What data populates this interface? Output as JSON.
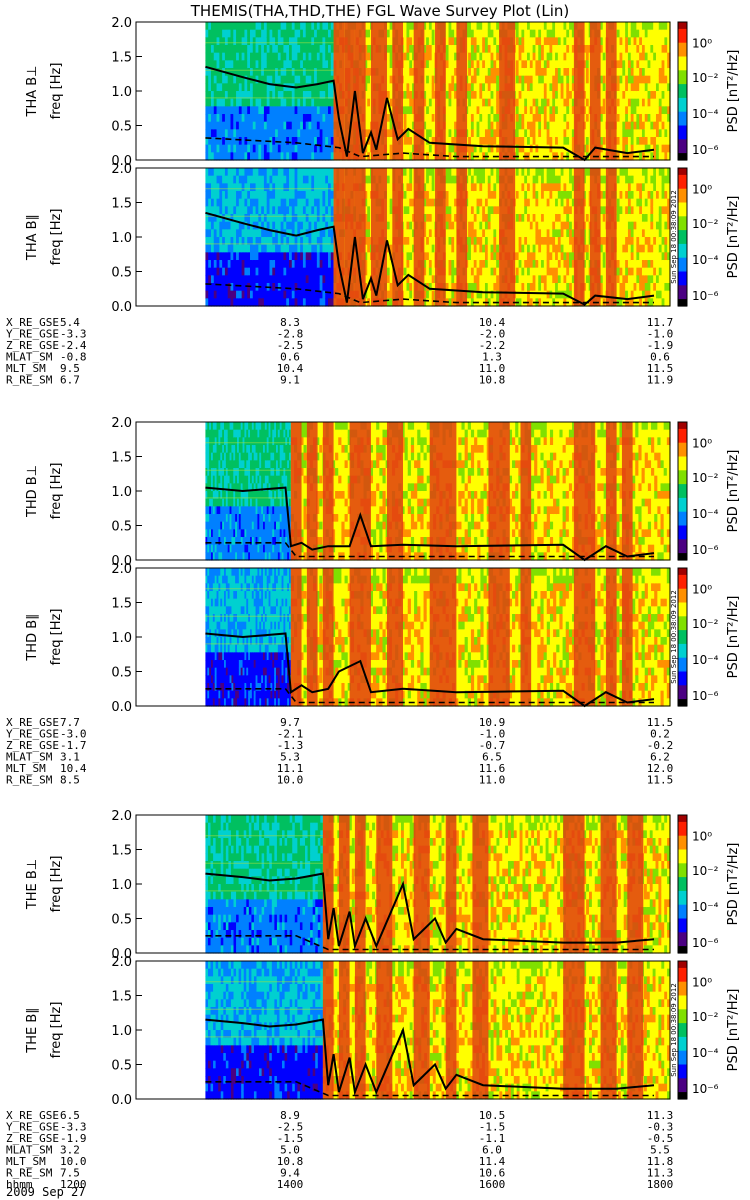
{
  "title": "THEMIS(THA,THD,THE) FGL Wave Survey Plot (Lin)",
  "stamp": "Sun Sep 18 00:38:09 2012",
  "colorbar": {
    "label": "PSD [nT²/Hz]",
    "ticks": [
      "10⁰",
      "10⁻²",
      "10⁻⁴",
      "10⁻⁶"
    ],
    "colors": [
      "#000000",
      "#4b0082",
      "#0000ff",
      "#0080ff",
      "#00d0d0",
      "#00c060",
      "#80e000",
      "#ffff00",
      "#ff9000",
      "#ff2000",
      "#a00000"
    ]
  },
  "freq_axis": {
    "label": "freq [Hz]",
    "ticks": [
      "0.0",
      "0.5",
      "1.0",
      "1.5",
      "2.0"
    ],
    "range": [
      0,
      2.0
    ]
  },
  "chart_data": [
    {
      "type": "heatmap",
      "probe": "THA",
      "panels": [
        "THA B⊥",
        "THA B∥"
      ],
      "data_start_frac": 0.13,
      "active_frac": 0.37,
      "red_bursts": [
        [
          0.37,
          0.39
        ],
        [
          0.39,
          0.41
        ],
        [
          0.41,
          0.43
        ],
        [
          0.44,
          0.47
        ],
        [
          0.48,
          0.5
        ],
        [
          0.52,
          0.54
        ],
        [
          0.56,
          0.58
        ],
        [
          0.6,
          0.62
        ],
        [
          0.68,
          0.71
        ],
        [
          0.82,
          0.84
        ],
        [
          0.85,
          0.87
        ],
        [
          0.88,
          0.9
        ]
      ],
      "line_solid_perp": [
        [
          0.13,
          1.35
        ],
        [
          0.2,
          1.2
        ],
        [
          0.25,
          1.1
        ],
        [
          0.3,
          1.05
        ],
        [
          0.34,
          1.1
        ],
        [
          0.37,
          1.15
        ],
        [
          0.38,
          0.6
        ],
        [
          0.395,
          0.05
        ],
        [
          0.41,
          1.0
        ],
        [
          0.425,
          0.1
        ],
        [
          0.44,
          0.4
        ],
        [
          0.45,
          0.15
        ],
        [
          0.47,
          0.9
        ],
        [
          0.49,
          0.3
        ],
        [
          0.51,
          0.45
        ],
        [
          0.55,
          0.25
        ],
        [
          0.65,
          0.2
        ],
        [
          0.8,
          0.18
        ],
        [
          0.84,
          0.0
        ],
        [
          0.86,
          0.18
        ],
        [
          0.92,
          0.1
        ],
        [
          0.97,
          0.15
        ]
      ],
      "line_solid_par": [
        [
          0.13,
          1.35
        ],
        [
          0.2,
          1.2
        ],
        [
          0.25,
          1.1
        ],
        [
          0.3,
          1.02
        ],
        [
          0.34,
          1.1
        ],
        [
          0.37,
          1.15
        ],
        [
          0.38,
          0.6
        ],
        [
          0.395,
          0.05
        ],
        [
          0.41,
          1.0
        ],
        [
          0.425,
          0.1
        ],
        [
          0.44,
          0.4
        ],
        [
          0.45,
          0.15
        ],
        [
          0.47,
          0.95
        ],
        [
          0.49,
          0.3
        ],
        [
          0.51,
          0.45
        ],
        [
          0.55,
          0.25
        ],
        [
          0.65,
          0.2
        ],
        [
          0.8,
          0.18
        ],
        [
          0.84,
          0.02
        ],
        [
          0.86,
          0.15
        ],
        [
          0.92,
          0.1
        ],
        [
          0.97,
          0.15
        ]
      ],
      "line_dashed": [
        [
          0.13,
          0.32
        ],
        [
          0.3,
          0.25
        ],
        [
          0.38,
          0.18
        ],
        [
          0.42,
          0.05
        ],
        [
          0.5,
          0.1
        ],
        [
          0.6,
          0.05
        ],
        [
          0.97,
          0.05
        ]
      ],
      "ephemeris": {
        "labels": [
          "X_RE_GSE",
          "Y_RE_GSE",
          "Z_RE_GSE",
          "MLAT_SM",
          "MLT_SM",
          "R_RE_SM"
        ],
        "columns": [
          [
            "5.4",
            "-3.3",
            "-2.4",
            "-0.8",
            "9.5",
            "6.7"
          ],
          [
            "8.3",
            "-2.8",
            "-2.5",
            "0.6",
            "10.4",
            "9.1"
          ],
          [
            "10.4",
            "-2.0",
            "-2.2",
            "1.3",
            "11.0",
            "10.8"
          ],
          [
            "11.7",
            "-1.0",
            "-1.9",
            "0.6",
            "11.5",
            "11.9"
          ]
        ]
      }
    },
    {
      "type": "heatmap",
      "probe": "THD",
      "panels": [
        "THD B⊥",
        "THD B∥"
      ],
      "data_start_frac": 0.13,
      "active_frac": 0.29,
      "red_bursts": [
        [
          0.29,
          0.31
        ],
        [
          0.32,
          0.34
        ],
        [
          0.35,
          0.37
        ],
        [
          0.4,
          0.44
        ],
        [
          0.47,
          0.5
        ],
        [
          0.55,
          0.6
        ],
        [
          0.66,
          0.7
        ],
        [
          0.72,
          0.74
        ],
        [
          0.82,
          0.86
        ],
        [
          0.88,
          0.9
        ],
        [
          0.91,
          0.93
        ]
      ],
      "line_solid_perp": [
        [
          0.13,
          1.05
        ],
        [
          0.2,
          1.0
        ],
        [
          0.28,
          1.05
        ],
        [
          0.29,
          0.2
        ],
        [
          0.31,
          0.25
        ],
        [
          0.33,
          0.15
        ],
        [
          0.36,
          0.2
        ],
        [
          0.4,
          0.2
        ],
        [
          0.42,
          0.65
        ],
        [
          0.44,
          0.2
        ],
        [
          0.5,
          0.22
        ],
        [
          0.6,
          0.2
        ],
        [
          0.8,
          0.22
        ],
        [
          0.84,
          0.0
        ],
        [
          0.88,
          0.2
        ],
        [
          0.92,
          0.05
        ],
        [
          0.97,
          0.1
        ]
      ],
      "line_solid_par": [
        [
          0.13,
          1.05
        ],
        [
          0.2,
          1.0
        ],
        [
          0.28,
          1.05
        ],
        [
          0.29,
          0.2
        ],
        [
          0.31,
          0.3
        ],
        [
          0.33,
          0.2
        ],
        [
          0.36,
          0.25
        ],
        [
          0.38,
          0.5
        ],
        [
          0.42,
          0.65
        ],
        [
          0.44,
          0.2
        ],
        [
          0.5,
          0.25
        ],
        [
          0.6,
          0.2
        ],
        [
          0.8,
          0.22
        ],
        [
          0.84,
          0.0
        ],
        [
          0.88,
          0.2
        ],
        [
          0.92,
          0.05
        ],
        [
          0.97,
          0.1
        ]
      ],
      "line_dashed": [
        [
          0.13,
          0.25
        ],
        [
          0.28,
          0.25
        ],
        [
          0.3,
          0.05
        ],
        [
          0.5,
          0.05
        ],
        [
          0.97,
          0.05
        ]
      ],
      "ephemeris": {
        "labels": [
          "X_RE_GSE",
          "Y_RE_GSE",
          "Z_RE_GSE",
          "MLAT_SM",
          "MLT_SM",
          "R_RE_SM"
        ],
        "columns": [
          [
            "7.7",
            "-3.0",
            "-1.7",
            "3.1",
            "10.4",
            "8.5"
          ],
          [
            "9.7",
            "-2.1",
            "-1.3",
            "5.3",
            "11.1",
            "10.0"
          ],
          [
            "10.9",
            "-1.0",
            "-0.7",
            "6.5",
            "11.6",
            "11.0"
          ],
          [
            "11.5",
            "0.2",
            "-0.2",
            "6.2",
            "12.0",
            "11.5"
          ]
        ]
      }
    },
    {
      "type": "heatmap",
      "probe": "THE",
      "panels": [
        "THE B⊥",
        "THE B∥"
      ],
      "data_start_frac": 0.13,
      "active_frac": 0.35,
      "red_bursts": [
        [
          0.35,
          0.37
        ],
        [
          0.38,
          0.4
        ],
        [
          0.41,
          0.43
        ],
        [
          0.45,
          0.48
        ],
        [
          0.52,
          0.55
        ],
        [
          0.58,
          0.6
        ],
        [
          0.63,
          0.66
        ],
        [
          0.8,
          0.84
        ],
        [
          0.87,
          0.9
        ],
        [
          0.92,
          0.95
        ]
      ],
      "line_solid_perp": [
        [
          0.13,
          1.15
        ],
        [
          0.2,
          1.1
        ],
        [
          0.25,
          1.05
        ],
        [
          0.3,
          1.08
        ],
        [
          0.35,
          1.15
        ],
        [
          0.36,
          0.2
        ],
        [
          0.37,
          0.65
        ],
        [
          0.38,
          0.1
        ],
        [
          0.4,
          0.6
        ],
        [
          0.41,
          0.1
        ],
        [
          0.43,
          0.5
        ],
        [
          0.45,
          0.1
        ],
        [
          0.5,
          1.0
        ],
        [
          0.52,
          0.2
        ],
        [
          0.56,
          0.5
        ],
        [
          0.58,
          0.15
        ],
        [
          0.6,
          0.35
        ],
        [
          0.65,
          0.2
        ],
        [
          0.8,
          0.15
        ],
        [
          0.9,
          0.15
        ],
        [
          0.97,
          0.2
        ]
      ],
      "line_solid_par": [
        [
          0.13,
          1.15
        ],
        [
          0.2,
          1.1
        ],
        [
          0.25,
          1.05
        ],
        [
          0.3,
          1.08
        ],
        [
          0.35,
          1.15
        ],
        [
          0.36,
          0.2
        ],
        [
          0.37,
          0.65
        ],
        [
          0.38,
          0.1
        ],
        [
          0.4,
          0.6
        ],
        [
          0.41,
          0.1
        ],
        [
          0.43,
          0.5
        ],
        [
          0.45,
          0.1
        ],
        [
          0.5,
          1.0
        ],
        [
          0.52,
          0.2
        ],
        [
          0.56,
          0.5
        ],
        [
          0.58,
          0.15
        ],
        [
          0.6,
          0.35
        ],
        [
          0.65,
          0.2
        ],
        [
          0.8,
          0.15
        ],
        [
          0.9,
          0.15
        ],
        [
          0.97,
          0.2
        ]
      ],
      "line_dashed": [
        [
          0.13,
          0.25
        ],
        [
          0.3,
          0.25
        ],
        [
          0.36,
          0.05
        ],
        [
          0.5,
          0.05
        ],
        [
          0.97,
          0.05
        ]
      ],
      "ephemeris": {
        "labels": [
          "X_RE_GSE",
          "Y_RE_GSE",
          "Z_RE_GSE",
          "MLAT_SM",
          "MLT_SM",
          "R_RE_SM",
          "hhmm"
        ],
        "columns": [
          [
            "6.5",
            "-3.3",
            "-1.9",
            "3.2",
            "10.0",
            "7.5",
            "1200"
          ],
          [
            "8.9",
            "-2.5",
            "-1.5",
            "5.0",
            "10.8",
            "9.4",
            "1400"
          ],
          [
            "10.5",
            "-1.5",
            "-1.1",
            "6.0",
            "11.4",
            "10.6",
            "1600"
          ],
          [
            "11.3",
            "-0.3",
            "-0.5",
            "5.5",
            "11.8",
            "11.3",
            "1800"
          ]
        ]
      }
    }
  ],
  "date": "2009 Sep 27"
}
